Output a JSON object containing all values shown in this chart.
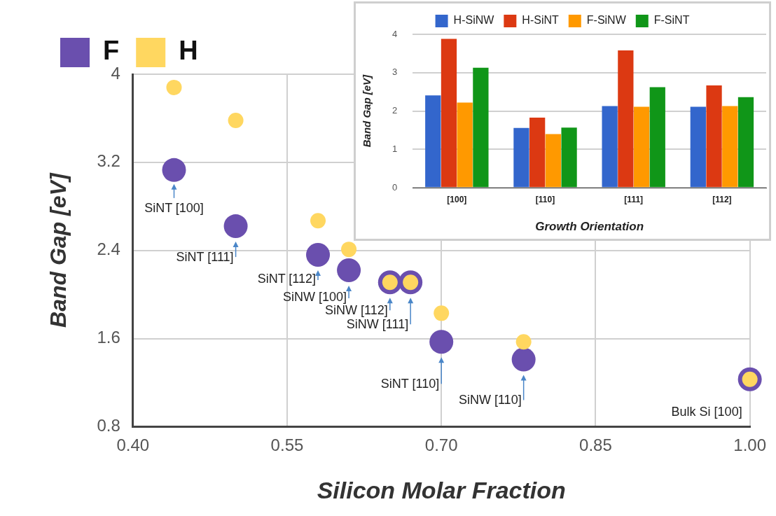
{
  "chart_data": [
    {
      "type": "scatter",
      "xlabel": "Silicon Molar Fraction",
      "ylabel": "Band Gap [eV]",
      "x": [
        0.44,
        0.5,
        0.58,
        0.61,
        0.65,
        0.67,
        0.7,
        0.78,
        1.0
      ],
      "series": [
        {
          "name": "F",
          "color": "#6a4fae",
          "values": [
            3.13,
            2.62,
            2.36,
            2.22,
            2.11,
            2.11,
            1.57,
            1.41,
            1.23
          ]
        },
        {
          "name": "H",
          "color": "#ffd760",
          "values": [
            3.88,
            3.58,
            2.67,
            2.41,
            2.11,
            2.11,
            1.83,
            1.57,
            1.23
          ]
        }
      ],
      "xlim": [
        0.4,
        1.0
      ],
      "xticks": [
        {
          "value": 0.4,
          "label": "0.40"
        },
        0.55,
        {
          "value": 0.7,
          "label": "0.70"
        },
        0.85,
        {
          "value": 1.0,
          "label": "1.00"
        }
      ],
      "ylim": [
        0.8,
        4
      ],
      "yticks": [
        0.8,
        1.6,
        2.4,
        3.2,
        4
      ],
      "grid": true,
      "legend": "top left",
      "marker": "circle",
      "annotations": [
        {
          "text": "SiNT [100]",
          "x": 0.44,
          "y": 3.13
        },
        {
          "text": "SiNT [111]",
          "x": 0.5,
          "y": 2.62
        },
        {
          "text": "SiNT [112]",
          "x": 0.58,
          "y": 2.36
        },
        {
          "text": "SiNW [100]",
          "x": 0.61,
          "y": 2.22
        },
        {
          "text": "SiNW [112]",
          "x": 0.65,
          "y": 2.11
        },
        {
          "text": "SiNW [111]",
          "x": 0.67,
          "y": 2.11
        },
        {
          "text": "SiNT [110]",
          "x": 0.7,
          "y": 1.57
        },
        {
          "text": "SiNW [110]",
          "x": 0.78,
          "y": 1.41
        },
        {
          "text": "Bulk Si [100]",
          "x": 1.0,
          "y": 1.23
        }
      ]
    },
    {
      "type": "bar",
      "xlabel": "Growth Orientation",
      "ylabel": "Band Gap [eV]",
      "categories": [
        "[100]",
        "[110]",
        "[111]",
        "[112]"
      ],
      "series": [
        {
          "name": "H-SiNW",
          "color": "#3366cc",
          "values": [
            2.41,
            1.56,
            2.13,
            2.11
          ]
        },
        {
          "name": "H-SiNT",
          "color": "#dc3912",
          "values": [
            3.88,
            1.83,
            3.58,
            2.67
          ]
        },
        {
          "name": "F-SiNW",
          "color": "#ff9900",
          "values": [
            2.22,
            1.4,
            2.11,
            2.13
          ]
        },
        {
          "name": "F-SiNT",
          "color": "#109618",
          "values": [
            3.13,
            1.57,
            2.62,
            2.36
          ]
        }
      ],
      "ylim": [
        0,
        4
      ],
      "yticks": [
        0,
        1,
        2,
        3,
        4
      ],
      "grid": "y",
      "legend": "top"
    }
  ]
}
